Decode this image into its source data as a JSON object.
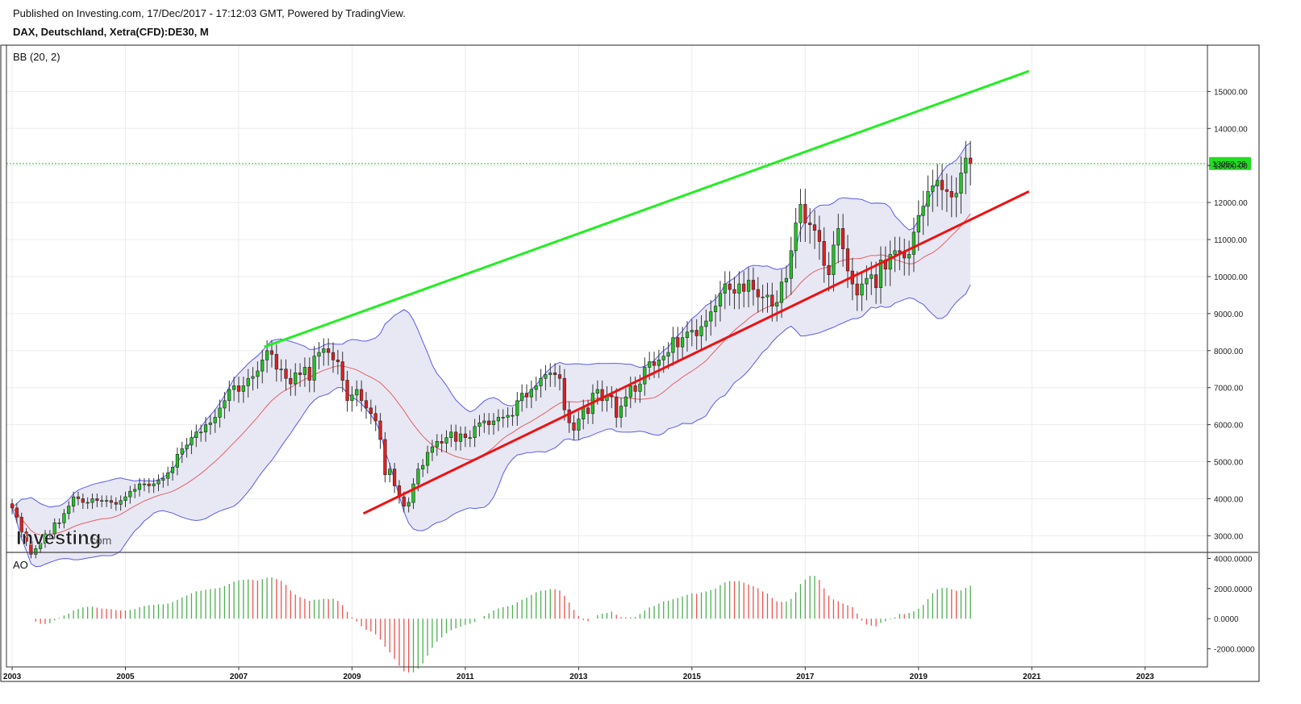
{
  "header": {
    "published": "Published on Investing.com, 17/Dec/2017 - 17:12:03 GMT, Powered by TradingView.",
    "symbol": "DAX, Deutschland, Xetra(CFD):DE30, M"
  },
  "indicators": {
    "bb_label": "BB (20, 2)",
    "ao_label": "AO"
  },
  "watermark": {
    "brand": "Investing",
    "suffix": ".com"
  },
  "last_price_label": "13052.26",
  "colors": {
    "up": "#22c322",
    "down": "#e02020",
    "resistance": "#22ee22",
    "support": "#ee1111",
    "bb_band": "#5a5aee",
    "bb_mid": "#e46060",
    "bb_fill": "#e8e8f5",
    "ao_up": "#4caf50",
    "ao_down": "#ef5350",
    "last_price_line": "#22cc22"
  },
  "chart_data": [
    {
      "type": "candlestick",
      "title": "DAX, Deutschland, Xetra(CFD):DE30, M",
      "price_axis": {
        "ticks": [
          3000,
          4000,
          5000,
          6000,
          7000,
          8000,
          9000,
          10000,
          11000,
          12000,
          13000,
          14000,
          15000
        ],
        "tick_labels": [
          "3000.00",
          "4000.00",
          "5000.00",
          "6000.00",
          "7000.00",
          "8000.00",
          "9000.00",
          "10000.00",
          "11000.00",
          "12000.00",
          "13000.00",
          "14000.00",
          "15000.00"
        ],
        "ylim": [
          2550,
          16250
        ]
      },
      "time_axis": {
        "ticks": [
          "2003",
          "2005",
          "2007",
          "2009",
          "2011",
          "2013",
          "2015",
          "2017",
          "2019",
          "2021",
          "2023"
        ],
        "xlim": [
          2002.9,
          2024.1
        ]
      },
      "last_price": 13052.26,
      "trendlines": [
        {
          "color": "green",
          "from": {
            "x": 2007.45,
            "y": 8100
          },
          "to": {
            "x": 2020.95,
            "y": 15550
          }
        },
        {
          "color": "red",
          "from": {
            "x": 2009.2,
            "y": 3600
          },
          "to": {
            "x": 2020.95,
            "y": 12300
          }
        }
      ],
      "monthly_close_approx": {
        "start": 2003.0,
        "values": [
          3750,
          3500,
          3100,
          2850,
          2500,
          2650,
          2800,
          3050,
          3050,
          3350,
          3350,
          3600,
          3800,
          4050,
          4000,
          3900,
          3900,
          4000,
          3950,
          3950,
          3950,
          3900,
          3850,
          3950,
          4050,
          4200,
          4250,
          4400,
          4400,
          4350,
          4400,
          4500,
          4550,
          4700,
          4850,
          5200,
          5350,
          5450,
          5650,
          5800,
          5800,
          6000,
          6050,
          6200,
          6450,
          6650,
          6950,
          7050,
          6900,
          7050,
          7250,
          7300,
          7450,
          7750,
          8000,
          7900,
          7500,
          7500,
          7250,
          7100,
          7400,
          7350,
          7550,
          7200,
          7850,
          7950,
          8050,
          7950,
          7750,
          7700,
          7200,
          6650,
          6800,
          6950,
          6650,
          6450,
          6300,
          6100,
          5600,
          4650,
          4800,
          4350,
          4050,
          3800,
          3900,
          4400,
          4800,
          4900,
          5250,
          5400,
          5550,
          5500,
          5650,
          5800,
          5550,
          5750,
          5650,
          5650,
          5950,
          6050,
          6100,
          6000,
          6100,
          6200,
          6200,
          6250,
          6250,
          6650,
          6850,
          6750,
          6950,
          7050,
          7250,
          7350,
          7400,
          7350,
          7250,
          6400,
          6050,
          5850,
          6150,
          6450,
          6300,
          6850,
          6950,
          6650,
          6800,
          6750,
          6200,
          6500,
          6750,
          7050,
          6900,
          7100,
          7550,
          7700,
          7600,
          7750,
          7850,
          7950,
          8350,
          8100,
          8350,
          8500,
          8550,
          8400,
          8650,
          8800,
          9050,
          9200,
          9550,
          9800,
          9650,
          9550,
          9800,
          9600,
          9900,
          9650,
          9450,
          9450,
          9500,
          9200,
          9300,
          9850,
          9950,
          10700,
          11450,
          11950,
          11450,
          11400,
          11250,
          10950,
          10300,
          10050,
          10850,
          11300,
          10750,
          10150,
          9800,
          9500,
          9800,
          9950,
          10050,
          9700,
          10450,
          10200,
          10600,
          10700,
          10650,
          10500,
          10600,
          11200,
          11650,
          11900,
          12300,
          12450,
          12600,
          12350,
          12300,
          12150,
          12250,
          12800,
          13200,
          13050
        ]
      }
    },
    {
      "type": "bar",
      "title": "AO",
      "ylim": [
        -3200,
        4400
      ],
      "ticks": [
        -2000,
        0,
        2000,
        4000
      ],
      "tick_labels": [
        "-2000.0000",
        "0.0000",
        "2000.0000",
        "4000.0000"
      ]
    }
  ]
}
